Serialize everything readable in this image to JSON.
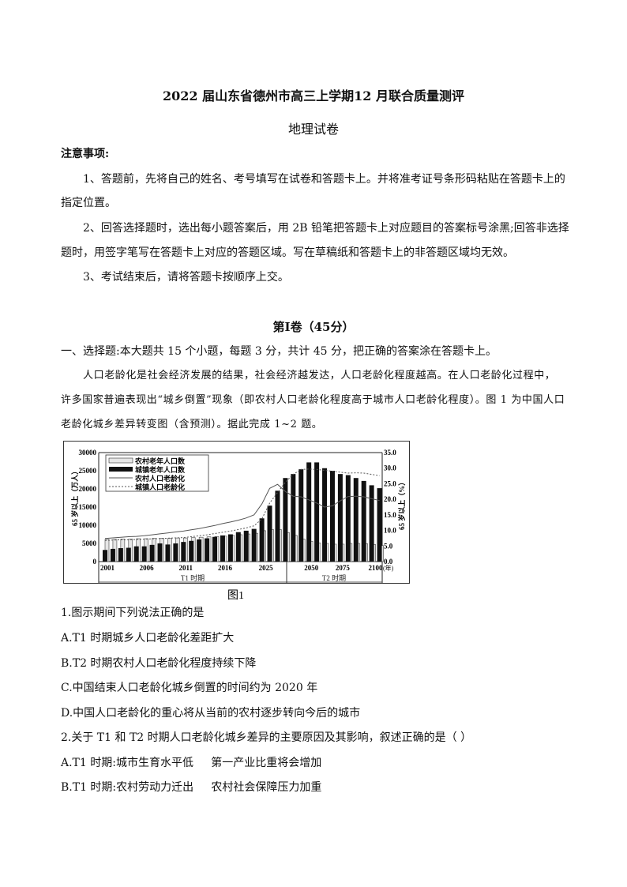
{
  "title": "2022 届山东省德州市高三上学期12 月联合质量测评",
  "subtitle": "地理试卷",
  "notice": {
    "heading": "注意事项:",
    "item1_line1": "1、答题前，先将自己的姓名、考号填写在试卷和答题卡上。并将准考证号条形码粘贴在答题卡上的",
    "item1_line2": "指定位置。",
    "item2_line1": "2、回答选择题时，选出每小题答案后，用 2B 铅笔把答题卡上对应题目的答案标号涂黑;回答非选择",
    "item2_line2": "题时，用签字笔写在答题卡上对应的答题区域。写在草稿纸和答题卡上的非答题区域均无效。",
    "item3": "3、考试结束后，请将答题卡按顺序上交。"
  },
  "section": {
    "title": "第I卷（45分）",
    "instruction": "一、选择题:本大题共 15 个小题，每题 3 分，共计 45 分，把正确的答案涂在答题卡上。",
    "passage_line1": "人口老龄化是社会经济发展的结果，社会经济越发达，人口老龄化程度越高。在人口老龄化过程中，",
    "passage_line2": "许多国家普遍表现出“城乡倒置”现象（即农村人口老龄化程度高于城市人口老龄化程度）。图 1 为中国人口",
    "passage_line3": "老龄化城乡差异转变图（含预测）。据此完成 1~2 题。"
  },
  "chart_data": {
    "type": "bar+line",
    "caption": "图1",
    "ylabel_left": "65 岁以上（万人）",
    "ylabel_right": "65 岁以上（%）",
    "xunit": "(年)",
    "ylim_left": [
      0,
      30000
    ],
    "ylim_right": [
      0,
      35
    ],
    "yticks_left": [
      "0",
      "5000",
      "10000",
      "15000",
      "20000",
      "25000",
      "30000"
    ],
    "yticks_right": [
      "0.0",
      "5.0",
      "10.0",
      "15.0",
      "20.0",
      "25.0",
      "30.0",
      "35.0"
    ],
    "xtick_labels": [
      "2001",
      "2006",
      "2011",
      "2016",
      "2025",
      "2050",
      "2075",
      "2100"
    ],
    "periods": [
      "T1 时期",
      "T2 时期"
    ],
    "legend_position": "top-left",
    "categories": [
      2001,
      2002,
      2003,
      2004,
      2005,
      2006,
      2007,
      2008,
      2009,
      2010,
      2011,
      2012,
      2013,
      2014,
      2015,
      2016,
      2017,
      2018,
      2019,
      2020,
      2025,
      2030,
      2035,
      2040,
      2045,
      2050,
      2055,
      2060,
      2065,
      2070,
      2075,
      2080,
      2085,
      2090,
      2095,
      2100
    ],
    "series": [
      {
        "name": "农村老年人口数",
        "kind": "bar",
        "axis": "left",
        "color": "#e6e6e6",
        "values": [
          6100,
          6100,
          6200,
          6200,
          6300,
          6300,
          6400,
          6400,
          6400,
          6500,
          6500,
          6600,
          6700,
          6800,
          6900,
          7000,
          7200,
          7400,
          7600,
          7800,
          8500,
          8800,
          8800,
          8000,
          7200,
          6200,
          5600,
          5100,
          5000,
          4800,
          4800,
          5000,
          5000,
          4900,
          4700,
          4400
        ]
      },
      {
        "name": "城镇老年人口数",
        "kind": "bar",
        "axis": "left",
        "color": "#111111",
        "values": [
          3200,
          3500,
          3700,
          3800,
          4200,
          4200,
          4600,
          5000,
          4700,
          5000,
          5400,
          5700,
          6100,
          6400,
          6800,
          7200,
          7500,
          8100,
          8500,
          9000,
          11900,
          15400,
          19500,
          23000,
          24100,
          25400,
          27300,
          27300,
          25700,
          25000,
          24100,
          23800,
          23000,
          22200,
          21000,
          20200
        ]
      },
      {
        "name": "农村人口老龄化",
        "kind": "line",
        "axis": "right",
        "color": "#555555",
        "values": [
          7.4,
          7.6,
          7.8,
          8.0,
          8.1,
          8.3,
          8.6,
          8.9,
          9.2,
          9.5,
          9.8,
          10.2,
          10.6,
          11.1,
          11.6,
          12.2,
          12.7,
          13.3,
          14.0,
          15.0,
          18.5,
          23.5,
          24.8,
          22.5,
          21.0,
          20.8,
          19.8,
          18.8,
          17.5,
          17.9,
          19.5,
          20.9,
          21.0,
          20.8,
          20.2,
          19.6
        ]
      },
      {
        "name": "城镇人口老龄化",
        "kind": "dashed-line",
        "axis": "right",
        "color": "#555555",
        "values": [
          6.8,
          6.9,
          7.0,
          7.0,
          7.1,
          7.2,
          7.3,
          7.4,
          7.5,
          7.6,
          7.7,
          8.0,
          8.3,
          8.6,
          9.0,
          9.4,
          9.8,
          10.3,
          10.8,
          11.5,
          13.7,
          18.8,
          22.2,
          25.5,
          28.0,
          29.6,
          29.7,
          29.6,
          29.3,
          29.0,
          28.7,
          28.4,
          28.5,
          28.4,
          28.0,
          27.6
        ]
      }
    ]
  },
  "questions": [
    {
      "stem": "1.图示期间下列说法正确的是",
      "options": [
        "A.T1 时期城乡人口老龄化差距扩大",
        "B.T2 时期农村人口老龄化程度持续下降",
        "C.中国结束人口老龄化城乡倒置的时间约为 2020 年",
        "D.中国人口老龄化的重心将从当前的农村逐步转向今后的城市"
      ]
    },
    {
      "stem": "2.关于  T1 和  T2 时期人口老龄化城乡差异的主要原因及其影响，叙述正确的是（  ）",
      "options": [
        "A.T1 时期:城市生育水平低     第一产业比重将会增加",
        "B.T1 时期:农村劳动力迁出     农村社会保障压力加重"
      ]
    }
  ]
}
